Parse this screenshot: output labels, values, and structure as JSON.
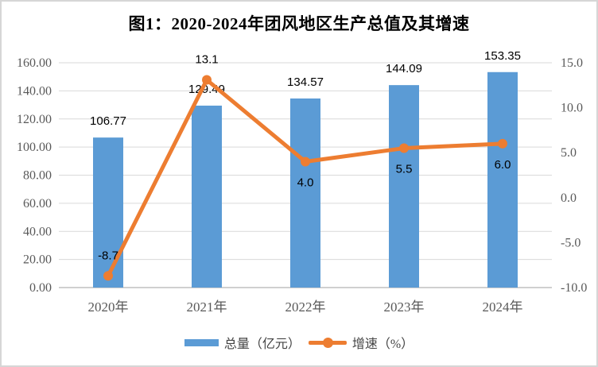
{
  "title": "图1：2020-2024年团风地区生产总值及其增速",
  "colors": {
    "bar": "#5B9BD5",
    "line": "#ED7D31",
    "gridline": "#D9D9D9",
    "axis_line": "#C0C0C0",
    "tick_text": "#595959",
    "data_label": "#000000",
    "title_text": "#000000",
    "figure_border": "#D6D6D6"
  },
  "chart_data": {
    "type": "bar",
    "subtype": "combo bar+line, dual axis",
    "title": "图1：2020-2024年团风地区生产总值及其增速",
    "categories": [
      "2020年",
      "2021年",
      "2022年",
      "2023年",
      "2024年"
    ],
    "series": [
      {
        "name": "总量（亿元）",
        "type": "bar",
        "axis": "left",
        "values": [
          106.77,
          129.49,
          134.57,
          144.09,
          153.35
        ],
        "labels": [
          "106.77",
          "129.49",
          "134.57",
          "144.09",
          "153.35"
        ],
        "color": "#5B9BD5"
      },
      {
        "name": "增速（%）",
        "type": "line",
        "axis": "right",
        "values": [
          -8.7,
          13.1,
          4.0,
          5.5,
          6.0
        ],
        "labels": [
          "-8.7",
          "13.1",
          "4.0",
          "5.5",
          "6.0"
        ],
        "label_positions": [
          "above",
          "above",
          "below",
          "below",
          "below"
        ],
        "color": "#ED7D31"
      }
    ],
    "left_axis": {
      "min": 0,
      "max": 160,
      "step": 20,
      "tick_labels": [
        "0.00",
        "20.00",
        "40.00",
        "60.00",
        "80.00",
        "100.00",
        "120.00",
        "140.00",
        "160.00"
      ]
    },
    "right_axis": {
      "min": -10,
      "max": 15,
      "step": 5,
      "tick_labels": [
        "-10.0",
        "-5.0",
        "0.0",
        "5.0",
        "10.0",
        "15.0"
      ]
    },
    "grid": true,
    "legend_position": "bottom"
  },
  "legend": {
    "items": [
      {
        "label": "总量（亿元）",
        "marker": "bar-swatch",
        "color": "#5B9BD5"
      },
      {
        "label": "增速（%）",
        "marker": "line-dot",
        "color": "#ED7D31"
      }
    ]
  }
}
